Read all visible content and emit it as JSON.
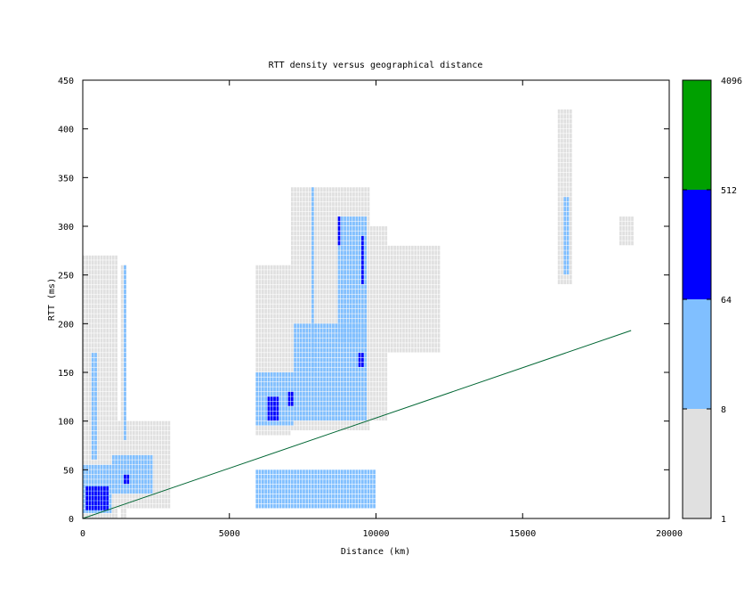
{
  "chart_data": {
    "type": "heatmap",
    "title": "RTT density versus geographical distance",
    "xlabel": "Distance (km)",
    "ylabel": "RTT (ms)",
    "xlim": [
      0,
      20000
    ],
    "ylim": [
      0,
      450
    ],
    "x_ticks": [
      "0",
      "5000",
      "10000",
      "15000",
      "20000"
    ],
    "y_ticks": [
      "0",
      "50",
      "100",
      "150",
      "200",
      "250",
      "300",
      "350",
      "400",
      "450"
    ],
    "grid": false,
    "colorbar": {
      "scale": "log",
      "ticks": [
        "1",
        "8",
        "64",
        "512",
        "4096"
      ],
      "bands": [
        {
          "from": 1,
          "to": 8,
          "color": "#e0e0e0"
        },
        {
          "from": 8,
          "to": 64,
          "color": "#80bfff"
        },
        {
          "from": 64,
          "to": 512,
          "color": "#0000ff"
        },
        {
          "from": 512,
          "to": 4096,
          "color": "#00a000"
        }
      ]
    },
    "density_regions": [
      {
        "x": [
          0,
          1200
        ],
        "y": [
          0,
          270
        ],
        "level": 1
      },
      {
        "x": [
          1200,
          3000
        ],
        "y": [
          10,
          100
        ],
        "level": 1
      },
      {
        "x": [
          1300,
          1500
        ],
        "y": [
          0,
          260
        ],
        "level": 1
      },
      {
        "x": [
          5900,
          7100
        ],
        "y": [
          85,
          260
        ],
        "level": 1
      },
      {
        "x": [
          7100,
          9800
        ],
        "y": [
          90,
          340
        ],
        "level": 1
      },
      {
        "x": [
          9800,
          10400
        ],
        "y": [
          100,
          300
        ],
        "level": 1
      },
      {
        "x": [
          10400,
          12200
        ],
        "y": [
          170,
          280
        ],
        "level": 1
      },
      {
        "x": [
          16200,
          16700
        ],
        "y": [
          240,
          420
        ],
        "level": 1
      },
      {
        "x": [
          18300,
          18800
        ],
        "y": [
          280,
          310
        ],
        "level": 1
      },
      {
        "x": [
          0,
          1000
        ],
        "y": [
          5,
          55
        ],
        "level": 2
      },
      {
        "x": [
          1000,
          2400
        ],
        "y": [
          25,
          65
        ],
        "level": 2
      },
      {
        "x": [
          300,
          500
        ],
        "y": [
          60,
          170
        ],
        "level": 2
      },
      {
        "x": [
          1400,
          1500
        ],
        "y": [
          80,
          260
        ],
        "level": 2
      },
      {
        "x": [
          5900,
          7200
        ],
        "y": [
          95,
          150
        ],
        "level": 2
      },
      {
        "x": [
          7200,
          9700
        ],
        "y": [
          100,
          200
        ],
        "level": 2
      },
      {
        "x": [
          7800,
          7900
        ],
        "y": [
          150,
          340
        ],
        "level": 2
      },
      {
        "x": [
          8700,
          9700
        ],
        "y": [
          180,
          310
        ],
        "level": 2
      },
      {
        "x": [
          16400,
          16600
        ],
        "y": [
          250,
          330
        ],
        "level": 2
      },
      {
        "x": [
          5900,
          10000
        ],
        "y": [
          10,
          50
        ],
        "level": 2
      },
      {
        "x": [
          100,
          900
        ],
        "y": [
          8,
          30
        ],
        "level": 3
      },
      {
        "x": [
          1400,
          1600
        ],
        "y": [
          35,
          45
        ],
        "level": 3
      },
      {
        "x": [
          6300,
          6700
        ],
        "y": [
          100,
          125
        ],
        "level": 3
      },
      {
        "x": [
          7000,
          7200
        ],
        "y": [
          115,
          130
        ],
        "level": 3
      },
      {
        "x": [
          8700,
          8800
        ],
        "y": [
          280,
          310
        ],
        "level": 3
      },
      {
        "x": [
          9400,
          9600
        ],
        "y": [
          155,
          170
        ],
        "level": 3
      },
      {
        "x": [
          9500,
          9600
        ],
        "y": [
          240,
          290
        ],
        "level": 3
      }
    ],
    "reference_line": {
      "x": [
        0,
        18700
      ],
      "y": [
        0,
        193
      ],
      "color": "#006633"
    }
  }
}
